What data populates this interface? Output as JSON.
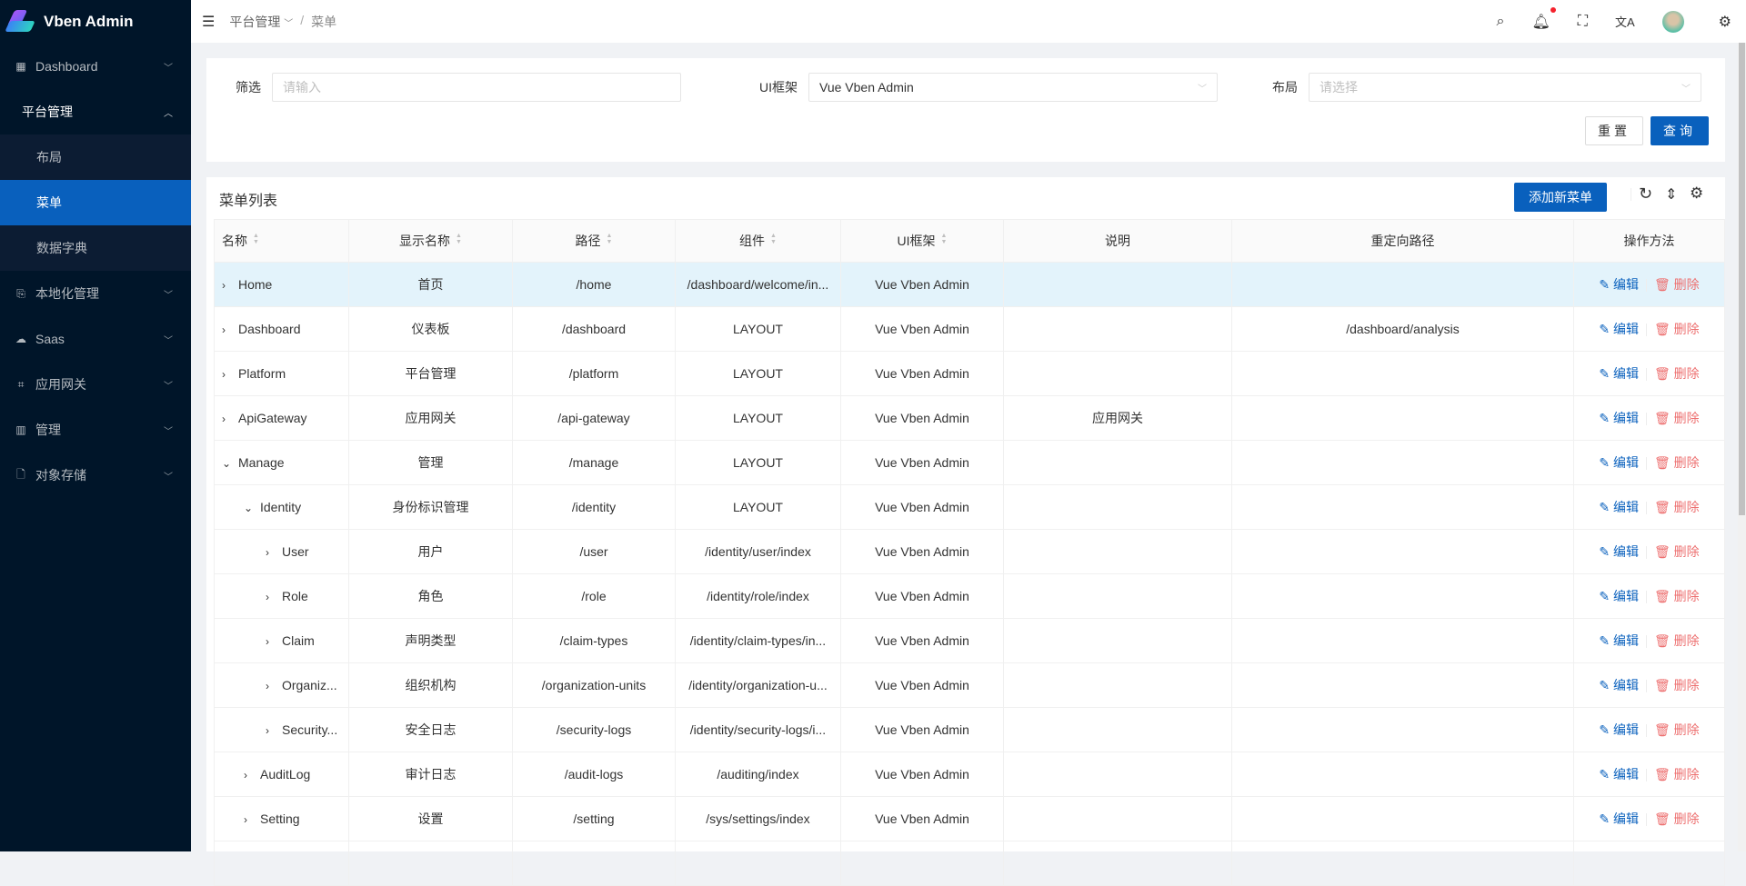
{
  "app": {
    "title": "Vben Admin"
  },
  "sidebar": {
    "items": [
      {
        "label": "Dashboard",
        "icon": "grid-icon"
      },
      {
        "label": "平台管理",
        "open": true,
        "children": [
          {
            "label": "布局"
          },
          {
            "label": "菜单",
            "active": true
          },
          {
            "label": "数据字典"
          }
        ]
      },
      {
        "label": "本地化管理",
        "icon": "translate-doc-icon"
      },
      {
        "label": "Saas",
        "icon": "cloud-icon"
      },
      {
        "label": "应用网关",
        "icon": "gateway-icon"
      },
      {
        "label": "管理",
        "icon": "chart-icon"
      },
      {
        "label": "对象存储",
        "icon": "file-icon"
      }
    ]
  },
  "header": {
    "breadcrumb": [
      "平台管理",
      "菜单"
    ],
    "sep": "/"
  },
  "filter": {
    "filter_label": "筛选",
    "filter_placeholder": "请输入",
    "ui_label": "UI框架",
    "ui_value": "Vue Vben Admin",
    "layout_label": "布局",
    "layout_placeholder": "请选择",
    "reset": "重置",
    "search": "查询"
  },
  "table": {
    "title": "菜单列表",
    "add": "添加新菜单",
    "columns": [
      "名称",
      "显示名称",
      "路径",
      "组件",
      "UI框架",
      "说明",
      "重定向路径",
      "操作方法"
    ],
    "edit": "编辑",
    "delete": "删除",
    "rows": [
      {
        "name": "Home",
        "display": "首页",
        "path": "/home",
        "component": "/dashboard/welcome/in...",
        "ui": "Vue Vben Admin",
        "desc": "",
        "redirect": "",
        "level": 0,
        "expanded": false
      },
      {
        "name": "Dashboard",
        "display": "仪表板",
        "path": "/dashboard",
        "component": "LAYOUT",
        "ui": "Vue Vben Admin",
        "desc": "",
        "redirect": "/dashboard/analysis",
        "level": 0,
        "expanded": false
      },
      {
        "name": "Platform",
        "display": "平台管理",
        "path": "/platform",
        "component": "LAYOUT",
        "ui": "Vue Vben Admin",
        "desc": "",
        "redirect": "",
        "level": 0,
        "expanded": false
      },
      {
        "name": "ApiGateway",
        "display": "应用网关",
        "path": "/api-gateway",
        "component": "LAYOUT",
        "ui": "Vue Vben Admin",
        "desc": "应用网关",
        "redirect": "",
        "level": 0,
        "expanded": false
      },
      {
        "name": "Manage",
        "display": "管理",
        "path": "/manage",
        "component": "LAYOUT",
        "ui": "Vue Vben Admin",
        "desc": "",
        "redirect": "",
        "level": 0,
        "expanded": true
      },
      {
        "name": "Identity",
        "display": "身份标识管理",
        "path": "/identity",
        "component": "LAYOUT",
        "ui": "Vue Vben Admin",
        "desc": "",
        "redirect": "",
        "level": 1,
        "expanded": true
      },
      {
        "name": "User",
        "display": "用户",
        "path": "/user",
        "component": "/identity/user/index",
        "ui": "Vue Vben Admin",
        "desc": "",
        "redirect": "",
        "level": 2,
        "expanded": false
      },
      {
        "name": "Role",
        "display": "角色",
        "path": "/role",
        "component": "/identity/role/index",
        "ui": "Vue Vben Admin",
        "desc": "",
        "redirect": "",
        "level": 2,
        "expanded": false
      },
      {
        "name": "Claim",
        "display": "声明类型",
        "path": "/claim-types",
        "component": "/identity/claim-types/in...",
        "ui": "Vue Vben Admin",
        "desc": "",
        "redirect": "",
        "level": 2,
        "expanded": false
      },
      {
        "name": "Organiz...",
        "display": "组织机构",
        "path": "/organization-units",
        "component": "/identity/organization-u...",
        "ui": "Vue Vben Admin",
        "desc": "",
        "redirect": "",
        "level": 2,
        "expanded": false
      },
      {
        "name": "Security...",
        "display": "安全日志",
        "path": "/security-logs",
        "component": "/identity/security-logs/i...",
        "ui": "Vue Vben Admin",
        "desc": "",
        "redirect": "",
        "level": 2,
        "expanded": false
      },
      {
        "name": "AuditLog",
        "display": "审计日志",
        "path": "/audit-logs",
        "component": "/auditing/index",
        "ui": "Vue Vben Admin",
        "desc": "",
        "redirect": "",
        "level": 1,
        "expanded": false
      },
      {
        "name": "Setting",
        "display": "设置",
        "path": "/setting",
        "component": "/sys/settings/index",
        "ui": "Vue Vben Admin",
        "desc": "",
        "redirect": "",
        "level": 1,
        "expanded": false
      }
    ]
  },
  "colors": {
    "sidebar": "#001529",
    "submenu": "#0c1c33",
    "primary": "#0960bd",
    "danger": "#ed6f6f",
    "highlight_row": "#e3f3fb"
  }
}
